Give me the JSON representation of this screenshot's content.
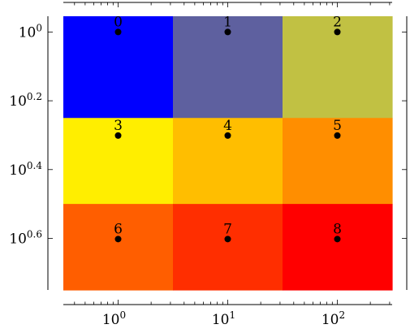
{
  "chart_data": {
    "type": "heatmap",
    "title": "",
    "xlabel": "",
    "ylabel": "",
    "x_scale": "log",
    "y_scale": "log",
    "y_reversed": true,
    "xlim": [
      0.3162,
      316.2
    ],
    "ylim": [
      0.9,
      5.623
    ],
    "x_ticks": [
      {
        "value": 1,
        "base": "10",
        "exp": "0"
      },
      {
        "value": 10,
        "base": "10",
        "exp": "1"
      },
      {
        "value": 100,
        "base": "10",
        "exp": "2"
      }
    ],
    "y_ticks": [
      {
        "value": 1,
        "base": "10",
        "exp": "0"
      },
      {
        "value": 1.5849,
        "base": "10",
        "exp": "0.2"
      },
      {
        "value": 2.5119,
        "base": "10",
        "exp": "0.4"
      },
      {
        "value": 3.9811,
        "base": "10",
        "exp": "0.6"
      }
    ],
    "x_cells": [
      {
        "x": 1,
        "x0": 0.3162,
        "x1": 3.162
      },
      {
        "x": 10,
        "x0": 3.162,
        "x1": 31.62
      },
      {
        "x": 100,
        "x0": 31.62,
        "x1": 316.2
      }
    ],
    "y_cells": [
      {
        "y": 1,
        "y0": 0.9,
        "y1": 1.778
      },
      {
        "y": 2,
        "y0": 1.778,
        "y1": 3.162
      },
      {
        "y": 4,
        "y0": 3.162,
        "y1": 5.623
      }
    ],
    "cells": [
      {
        "label": "0",
        "color": "#0000ff"
      },
      {
        "label": "1",
        "color": "#5e609f"
      },
      {
        "label": "2",
        "color": "#c1c143"
      },
      {
        "label": "3",
        "color": "#ffee00"
      },
      {
        "label": "4",
        "color": "#ffbe00"
      },
      {
        "label": "5",
        "color": "#ff8e00"
      },
      {
        "label": "6",
        "color": "#ff5e00"
      },
      {
        "label": "7",
        "color": "#ff2e00"
      },
      {
        "label": "8",
        "color": "#ff0000"
      }
    ],
    "marker_color": "#000000",
    "grid": false
  }
}
